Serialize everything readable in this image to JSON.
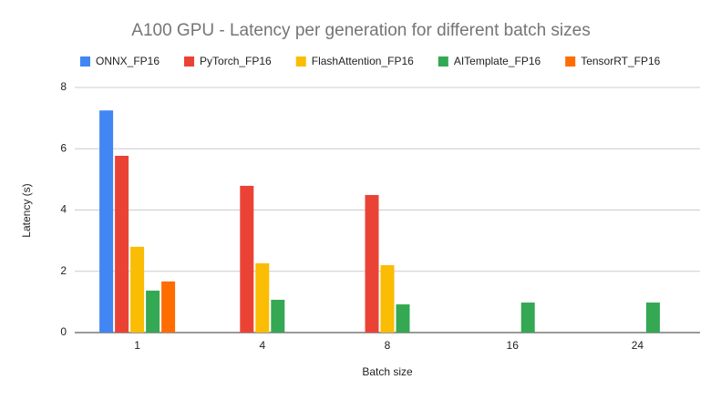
{
  "chart_data": {
    "type": "bar",
    "title": "A100 GPU - Latency per generation for different batch sizes",
    "x_label": "Batch size",
    "y_label": "Latency (s)",
    "categories": [
      "1",
      "4",
      "8",
      "16",
      "24"
    ],
    "series": [
      {
        "name": "ONNX_FP16",
        "color": "#4285f4",
        "values": [
          7.25,
          null,
          null,
          null,
          null
        ]
      },
      {
        "name": "PyTorch_FP16",
        "color": "#ea4335",
        "values": [
          5.77,
          4.79,
          4.49,
          null,
          null
        ]
      },
      {
        "name": "FlashAttention_FP16",
        "color": "#fbbc04",
        "values": [
          2.8,
          2.26,
          2.2,
          null,
          null
        ]
      },
      {
        "name": "AITemplate_FP16",
        "color": "#34a853",
        "values": [
          1.37,
          1.07,
          0.92,
          0.98,
          0.98
        ]
      },
      {
        "name": "TensorRT_FP16",
        "color": "#ff6d01",
        "values": [
          1.67,
          null,
          null,
          null,
          null
        ]
      }
    ],
    "ylim": [
      0,
      8
    ],
    "yticks": [
      0,
      2,
      4,
      6,
      8
    ],
    "grid": true
  }
}
